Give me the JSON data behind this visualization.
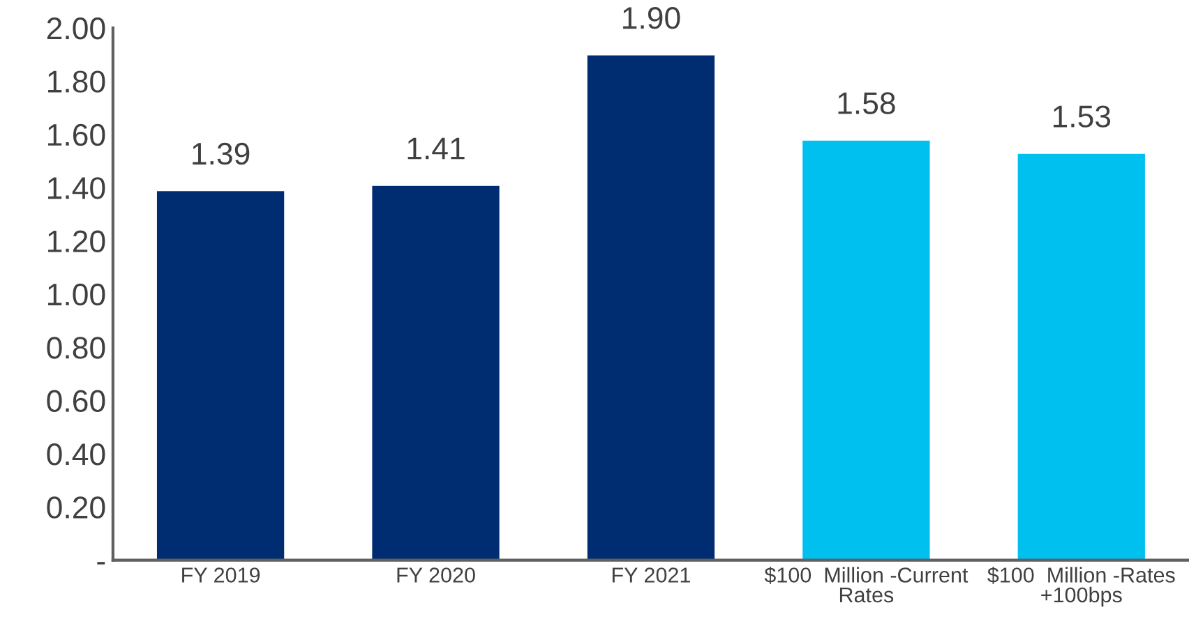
{
  "chart_data": {
    "type": "bar",
    "categories": [
      "FY 2019",
      "FY 2020",
      "FY 2021",
      "$100  Million -Current\nRates",
      "$100  Million -Rates\n+100bps"
    ],
    "values": [
      1.39,
      1.41,
      1.9,
      1.58,
      1.53
    ],
    "colors": [
      "#002d72",
      "#002d72",
      "#002d72",
      "#00c0f0",
      "#00c0f0"
    ],
    "value_labels": [
      "1.39",
      "1.41",
      "1.90",
      "1.58",
      "1.53"
    ],
    "ylim": [
      0,
      2.0
    ],
    "yticks": [
      {
        "value": 0,
        "label": "-"
      },
      {
        "value": 0.2,
        "label": "0.20"
      },
      {
        "value": 0.4,
        "label": "0.40"
      },
      {
        "value": 0.6,
        "label": "0.60"
      },
      {
        "value": 0.8,
        "label": "0.80"
      },
      {
        "value": 1.0,
        "label": "1.00"
      },
      {
        "value": 1.2,
        "label": "1.20"
      },
      {
        "value": 1.4,
        "label": "1.40"
      },
      {
        "value": 1.6,
        "label": "1.60"
      },
      {
        "value": 1.8,
        "label": "1.80"
      },
      {
        "value": 2.0,
        "label": "2.00"
      }
    ],
    "grid": false
  }
}
